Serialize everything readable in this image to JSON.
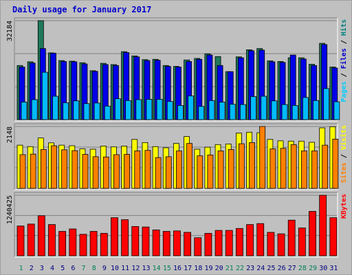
{
  "chart_data": {
    "title": "Daily usage for January 2017",
    "type": "bar",
    "days": [
      "1",
      "2",
      "3",
      "4",
      "5",
      "6",
      "7",
      "8",
      "9",
      "10",
      "11",
      "12",
      "13",
      "14",
      "15",
      "16",
      "17",
      "18",
      "19",
      "20",
      "21",
      "22",
      "23",
      "24",
      "25",
      "26",
      "27",
      "28",
      "29",
      "30",
      "31"
    ],
    "weekend_days": [
      1,
      7,
      8,
      14,
      15,
      21,
      22,
      28,
      29
    ],
    "panels": [
      {
        "id": "hits",
        "ymax_label": "32184",
        "ymax": 32184,
        "legend": [
          "Pages",
          "/",
          "Files",
          "/",
          "Hits"
        ],
        "legend_colors": [
          "#00ccff",
          "#000000",
          "#0000cc",
          "#000000",
          "#008080"
        ],
        "series": [
          {
            "name": "Hits",
            "color": "#1f7a5a",
            "values": [
              17600,
              18800,
              32184,
              21700,
              19200,
              19000,
              18500,
              15900,
              18300,
              17900,
              22100,
              20700,
              19500,
              19600,
              17600,
              17300,
              19400,
              19900,
              21400,
              20500,
              15600,
              20400,
              22700,
              23100,
              19100,
              18900,
              20100,
              20100,
              18000,
              24800,
              17100
            ]
          },
          {
            "name": "Files",
            "color": "#0000e8",
            "values": [
              17100,
              18400,
              23100,
              21600,
              18900,
              18800,
              18100,
              15700,
              17900,
              17600,
              21800,
              20400,
              19200,
              19300,
              17300,
              17100,
              18900,
              19600,
              21000,
              17600,
              15600,
              20100,
              22400,
              22600,
              18800,
              18600,
              21000,
              19700,
              17600,
              24400,
              16800
            ]
          },
          {
            "name": "Pages",
            "color": "#00bbff",
            "values": [
              5700,
              6500,
              15400,
              7600,
              5500,
              6100,
              5200,
              5400,
              4400,
              6800,
              6200,
              6500,
              6600,
              6600,
              5900,
              4600,
              7700,
              4300,
              6200,
              5700,
              5000,
              4900,
              7500,
              7600,
              6100,
              4900,
              4600,
              7200,
              6200,
              10100,
              5800
            ]
          }
        ]
      },
      {
        "id": "visits",
        "ymax_label": "2148",
        "ymax": 2148,
        "legend": [
          "Sites",
          "/",
          "Visits"
        ],
        "legend_colors": [
          "#ff8000",
          "#000000",
          "#ffff00"
        ],
        "series": [
          {
            "name": "Visits",
            "color": "#ffff00",
            "values": [
              1500,
              1450,
              1750,
              1580,
              1500,
              1480,
              1370,
              1360,
              1470,
              1440,
              1470,
              1700,
              1590,
              1450,
              1410,
              1560,
              1800,
              1360,
              1430,
              1520,
              1540,
              1920,
              1950,
              1930,
              1700,
              1650,
              1640,
              1640,
              1600,
              2100,
              2140
            ]
          },
          {
            "name": "Sites",
            "color": "#ff8000",
            "values": [
              1170,
              1190,
              1350,
              1480,
              1340,
              1310,
              1180,
              1100,
              1090,
              1170,
              1180,
              1300,
              1320,
              1070,
              1100,
              1300,
              1560,
              1130,
              1160,
              1300,
              1350,
              1550,
              1590,
              2148,
              1370,
              1390,
              1520,
              1300,
              1300,
              1500,
              1710
            ]
          }
        ]
      },
      {
        "id": "kbytes",
        "ymax_label": "1240425",
        "ymax": 1240425,
        "legend": [
          "KBytes"
        ],
        "legend_colors": [
          "#ff0000"
        ],
        "series": [
          {
            "name": "KBytes",
            "color": "#ff0000",
            "values": [
              610000,
              650000,
              820000,
              640000,
              500000,
              550000,
              440000,
              500000,
              460000,
              780000,
              740000,
              600000,
              590000,
              530000,
              500000,
              510000,
              480000,
              370000,
              460000,
              520000,
              520000,
              560000,
              640000,
              660000,
              480000,
              450000,
              730000,
              570000,
              910000,
              1240425,
              780000
            ]
          }
        ]
      }
    ]
  }
}
